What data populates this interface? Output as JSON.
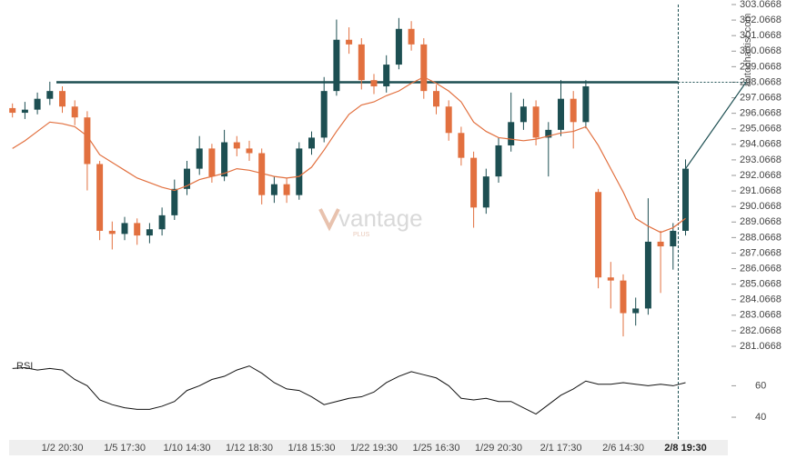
{
  "chart_data": {
    "type": "candlestick",
    "source": "autochartist.com",
    "watermark": "vantage",
    "watermark_sub": "PLUS",
    "rsi_label": "RSI",
    "up_color": "#1d4f52",
    "down_color": "#e2703f",
    "ma_color": "#e2703f",
    "level_color": "#1d4f52",
    "resistance": 298.0668,
    "categories": [
      null,
      null,
      null,
      null,
      "1/2 20:30",
      null,
      null,
      null,
      null,
      "1/5 17:30",
      null,
      null,
      null,
      null,
      "1/10 14:30",
      null,
      null,
      null,
      null,
      "1/12 18:30",
      null,
      null,
      null,
      null,
      "1/18 15:30",
      null,
      null,
      null,
      null,
      "1/22 19:30",
      null,
      null,
      null,
      null,
      "1/25 16:30",
      null,
      null,
      null,
      null,
      "1/29 20:30",
      null,
      null,
      null,
      null,
      "2/1 17:30",
      null,
      null,
      null,
      null,
      "2/6 14:30",
      null,
      null,
      null,
      null,
      "2/8 19:30"
    ],
    "candles": [
      [
        296.4,
        296.7,
        295.8,
        296.1
      ],
      [
        296.1,
        296.8,
        295.7,
        296.3
      ],
      [
        296.3,
        297.4,
        296.0,
        297.0
      ],
      [
        297.0,
        298.1,
        296.6,
        297.5
      ],
      [
        297.5,
        297.8,
        296.1,
        296.5
      ],
      [
        296.5,
        296.9,
        295.3,
        295.8
      ],
      [
        295.8,
        296.2,
        291.1,
        292.8
      ],
      [
        292.8,
        293.0,
        287.9,
        288.5
      ],
      [
        288.5,
        289.1,
        287.3,
        288.3
      ],
      [
        288.3,
        289.4,
        287.9,
        289.0
      ],
      [
        289.0,
        289.3,
        287.6,
        288.2
      ],
      [
        288.2,
        289.0,
        287.7,
        288.6
      ],
      [
        288.6,
        290.0,
        288.2,
        289.5
      ],
      [
        289.5,
        291.8,
        289.2,
        291.2
      ],
      [
        291.2,
        293.0,
        290.8,
        292.5
      ],
      [
        292.5,
        294.6,
        292.1,
        293.8
      ],
      [
        293.8,
        294.1,
        291.6,
        292.0
      ],
      [
        292.0,
        295.0,
        291.7,
        294.2
      ],
      [
        294.2,
        294.6,
        293.3,
        293.8
      ],
      [
        293.8,
        294.3,
        293.0,
        293.5
      ],
      [
        293.5,
        293.8,
        290.2,
        290.8
      ],
      [
        290.8,
        292.0,
        290.3,
        291.5
      ],
      [
        291.5,
        291.9,
        290.3,
        290.8
      ],
      [
        290.8,
        294.2,
        290.5,
        293.8
      ],
      [
        293.8,
        294.9,
        293.4,
        294.5
      ],
      [
        294.5,
        298.4,
        294.2,
        297.5
      ],
      [
        297.5,
        302.1,
        297.2,
        300.8
      ],
      [
        300.8,
        301.6,
        299.9,
        300.5
      ],
      [
        300.5,
        300.9,
        297.6,
        298.2
      ],
      [
        298.2,
        298.6,
        297.3,
        297.8
      ],
      [
        297.8,
        299.8,
        297.4,
        299.2
      ],
      [
        299.2,
        302.2,
        298.9,
        301.5
      ],
      [
        301.5,
        302.0,
        300.1,
        300.5
      ],
      [
        300.5,
        300.9,
        297.0,
        297.5
      ],
      [
        297.5,
        297.9,
        296.0,
        296.5
      ],
      [
        296.5,
        296.9,
        294.3,
        294.8
      ],
      [
        294.8,
        295.2,
        292.7,
        293.2
      ],
      [
        293.2,
        293.6,
        288.7,
        290.0
      ],
      [
        290.0,
        292.5,
        289.6,
        292.0
      ],
      [
        292.0,
        294.5,
        291.6,
        294.0
      ],
      [
        294.0,
        297.4,
        293.6,
        295.5
      ],
      [
        295.5,
        297.0,
        295.0,
        296.5
      ],
      [
        296.5,
        296.9,
        294.0,
        294.5
      ],
      [
        294.5,
        295.5,
        292.0,
        295.0
      ],
      [
        295.0,
        298.2,
        294.6,
        297.0
      ],
      [
        297.0,
        297.5,
        293.8,
        295.5
      ],
      [
        295.5,
        298.2,
        295.1,
        297.8
      ],
      [
        291.0,
        291.2,
        284.8,
        285.5
      ],
      [
        285.5,
        286.5,
        283.5,
        285.3
      ],
      [
        285.3,
        285.7,
        281.7,
        283.2
      ],
      [
        283.2,
        284.2,
        282.4,
        283.5
      ],
      [
        283.5,
        290.6,
        283.1,
        287.8
      ],
      [
        287.8,
        288.5,
        284.5,
        287.5
      ],
      [
        287.5,
        289.0,
        286.0,
        288.5
      ],
      [
        288.5,
        293.1,
        288.2,
        292.5
      ]
    ],
    "ma": [
      293.8,
      294.3,
      294.9,
      295.5,
      295.4,
      295.2,
      294.6,
      293.4,
      292.9,
      292.4,
      291.9,
      291.6,
      291.3,
      291.1,
      291.4,
      291.8,
      292.0,
      292.2,
      292.5,
      292.4,
      292.2,
      292.0,
      291.9,
      292.0,
      292.6,
      293.7,
      294.9,
      296.0,
      296.6,
      296.8,
      297.2,
      297.5,
      298.0,
      298.4,
      298.0,
      297.5,
      296.8,
      295.5,
      294.9,
      294.5,
      294.4,
      294.3,
      294.4,
      294.6,
      294.8,
      294.9,
      295.2,
      294.0,
      292.5,
      291.0,
      289.3,
      288.8,
      288.4,
      288.7,
      289.3
    ],
    "rsi": [
      71,
      71.5,
      70,
      71,
      70,
      64,
      60,
      51,
      48,
      46,
      45,
      45,
      47,
      50,
      57,
      60,
      64,
      66,
      70,
      72.6,
      68,
      62,
      58,
      57,
      53,
      48,
      50,
      52,
      53,
      56,
      62,
      66,
      69,
      67,
      65,
      60,
      52,
      51,
      52,
      50,
      50,
      46,
      42,
      48,
      54,
      58,
      63,
      61,
      61,
      62,
      61,
      60,
      61,
      60,
      62
    ],
    "ylim": [
      281.0668,
      303.0668
    ],
    "yticks": [
      303.0668,
      302.0668,
      301.0668,
      300.0668,
      299.0668,
      298.0668,
      297.0668,
      296.0668,
      295.0668,
      294.0668,
      293.0668,
      292.0668,
      291.0668,
      290.0668,
      289.0668,
      288.0668,
      287.0668,
      286.0668,
      285.0668,
      284.0668,
      283.0668,
      282.0668,
      281.0668
    ],
    "y2lim": [
      25,
      77
    ],
    "y2ticks": [
      60,
      40
    ]
  }
}
